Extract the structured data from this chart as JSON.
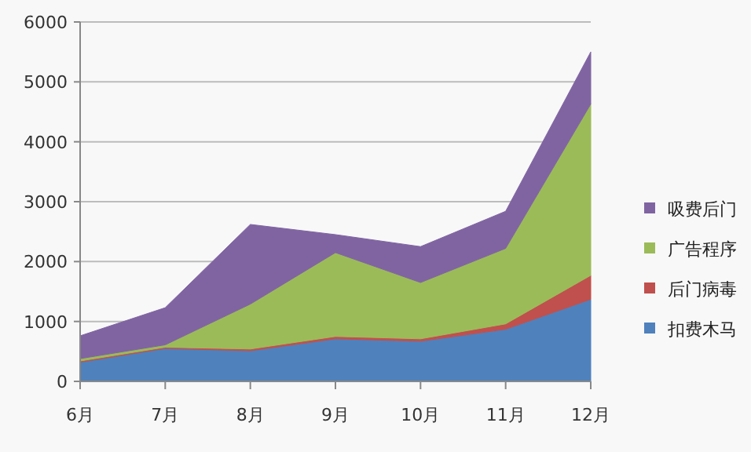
{
  "chart_data": {
    "type": "area",
    "stacked": true,
    "categories": [
      "6月",
      "7月",
      "8月",
      "9月",
      "10月",
      "11月",
      "12月"
    ],
    "series": [
      {
        "name": "扣费木马",
        "color": "#4f81bd",
        "values": [
          320,
          550,
          510,
          710,
          670,
          870,
          1370
        ]
      },
      {
        "name": "后门病毒",
        "color": "#c0504d",
        "values": [
          20,
          20,
          30,
          40,
          40,
          90,
          400
        ]
      },
      {
        "name": "广告程序",
        "color": "#9bbb59",
        "values": [
          40,
          40,
          750,
          1400,
          940,
          1260,
          2860
        ]
      },
      {
        "name": "吸费后门",
        "color": "#8064a2",
        "values": [
          380,
          620,
          1330,
          300,
          600,
          620,
          870
        ]
      }
    ],
    "ylim": [
      0,
      6000
    ],
    "yticks": [
      0,
      1000,
      2000,
      3000,
      4000,
      5000,
      6000
    ],
    "grid": "y",
    "legend": "right"
  }
}
